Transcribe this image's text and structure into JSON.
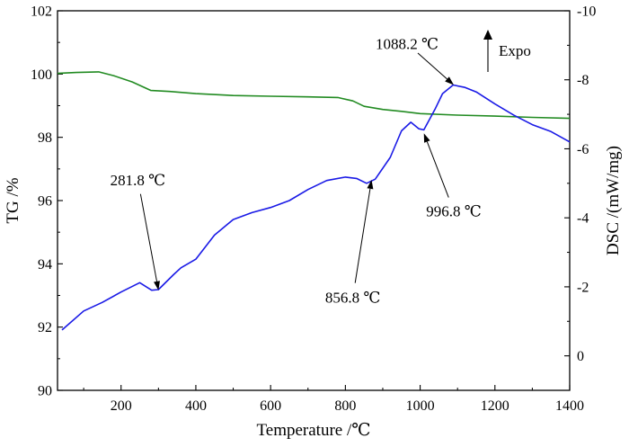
{
  "chart_data": {
    "type": "line",
    "xlabel": "Temperature /℃",
    "ylabel_left": "TG /%",
    "ylabel_right": "DSC /(mW/mg)",
    "xlim": [
      30,
      1400
    ],
    "ylim_left": [
      90,
      102
    ],
    "ylim_right_inverted": [
      -10,
      1
    ],
    "grid": false,
    "x_ticks": [
      200,
      400,
      600,
      800,
      1000,
      1200,
      1400
    ],
    "y_left_ticks": [
      90,
      92,
      94,
      96,
      98,
      100,
      102
    ],
    "y_right_ticks": [
      -10,
      -8,
      -6,
      -4,
      -2,
      0
    ],
    "x_tick_labels": [
      "200",
      "400",
      "600",
      "800",
      "1000",
      "1200",
      "1400"
    ],
    "y_left_tick_labels": [
      "90",
      "92",
      "94",
      "96",
      "98",
      "100",
      "102"
    ],
    "y_right_tick_labels": [
      "-10",
      "-8",
      "-6",
      "-4",
      "-2",
      "0"
    ],
    "series": [
      {
        "axis": "left",
        "color": "#228B22",
        "points": [
          [
            30,
            100.02
          ],
          [
            80,
            100.05
          ],
          [
            140,
            100.07
          ],
          [
            180,
            99.95
          ],
          [
            230,
            99.75
          ],
          [
            280,
            99.48
          ],
          [
            330,
            99.45
          ],
          [
            400,
            99.38
          ],
          [
            500,
            99.32
          ],
          [
            600,
            99.3
          ],
          [
            700,
            99.28
          ],
          [
            780,
            99.26
          ],
          [
            820,
            99.15
          ],
          [
            850,
            98.98
          ],
          [
            900,
            98.88
          ],
          [
            950,
            98.82
          ],
          [
            1000,
            98.75
          ],
          [
            1100,
            98.7
          ],
          [
            1200,
            98.67
          ],
          [
            1300,
            98.63
          ],
          [
            1400,
            98.6
          ]
        ]
      },
      {
        "axis": "right",
        "color": "#1A1AE6",
        "points": [
          [
            42,
            -0.75
          ],
          [
            100,
            -1.3
          ],
          [
            150,
            -1.55
          ],
          [
            200,
            -1.85
          ],
          [
            250,
            -2.12
          ],
          [
            281.8,
            -1.9
          ],
          [
            300,
            -1.92
          ],
          [
            340,
            -2.35
          ],
          [
            360,
            -2.55
          ],
          [
            400,
            -2.8
          ],
          [
            450,
            -3.5
          ],
          [
            500,
            -3.95
          ],
          [
            550,
            -4.15
          ],
          [
            600,
            -4.3
          ],
          [
            650,
            -4.5
          ],
          [
            700,
            -4.82
          ],
          [
            750,
            -5.08
          ],
          [
            800,
            -5.18
          ],
          [
            830,
            -5.14
          ],
          [
            856.8,
            -5.0
          ],
          [
            880,
            -5.12
          ],
          [
            920,
            -5.75
          ],
          [
            950,
            -6.52
          ],
          [
            975,
            -6.77
          ],
          [
            996.8,
            -6.58
          ],
          [
            1010,
            -6.55
          ],
          [
            1040,
            -7.15
          ],
          [
            1060,
            -7.6
          ],
          [
            1088.2,
            -7.85
          ],
          [
            1120,
            -7.78
          ],
          [
            1150,
            -7.65
          ],
          [
            1200,
            -7.3
          ],
          [
            1250,
            -6.98
          ],
          [
            1300,
            -6.7
          ],
          [
            1350,
            -6.5
          ],
          [
            1400,
            -6.2
          ]
        ]
      }
    ],
    "annotations": [
      {
        "text": "281.8 ℃",
        "at": [
          300,
          -1.9
        ],
        "label_at": [
          245,
          -5.1
        ]
      },
      {
        "text": "856.8 ℃",
        "at": [
          870,
          -5.1
        ],
        "label_at": [
          820,
          -1.7
        ]
      },
      {
        "text": "996.8 ℃",
        "at": [
          1010,
          -6.45
        ],
        "label_at": [
          1090,
          -4.2
        ]
      },
      {
        "text": "1088.2 ℃",
        "at": [
          1090,
          -7.85
        ],
        "label_at": [
          965,
          -9.05
        ]
      }
    ],
    "expo_label": "Expo"
  }
}
